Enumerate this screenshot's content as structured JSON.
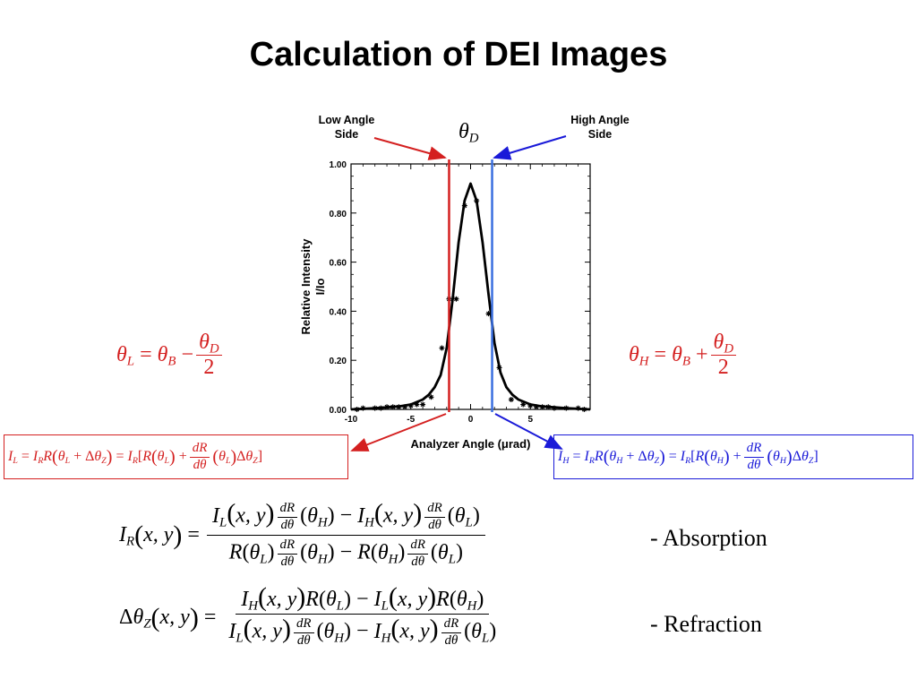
{
  "slide": {
    "title": "Calculation of DEI Images",
    "low_angle_side": "Low Angle\nSide",
    "high_angle_side": "High Angle\nSide",
    "theta_d": "θD",
    "absorption_label": "- Absorption",
    "refraction_label": "- Refraction",
    "eq_theta_l": "θL = θB − θD/2",
    "eq_theta_h": "θH = θB + θD/2",
    "eq_il": "IL = IR R(θL + ΔθZ) = IR[R(θL) + dR/dθ(θL)ΔθZ]",
    "eq_ih": "IH = IR R(θH + ΔθZ) = IR[R(θH) + dR/dθ(θH)ΔθZ]",
    "eq_ir": "IR(x,y) = [IL(x,y) dR/dθ(θH) − IH(x,y) dR/dθ(θL)] / [R(θL) dR/dθ(θH) − R(θH) dR/dθ(θL)]",
    "eq_dtheta": "ΔθZ(x,y) = [IH(x,y)R(θL) − IL(x,y)R(θH)] / [IL(x,y) dR/dθ(θH) − IH(x,y) dR/dθ(θL)]"
  },
  "colors": {
    "low": "#d42020",
    "high": "#3a6fe0",
    "arrow_high": "#1a1ad8"
  },
  "chart_data": {
    "type": "line",
    "title": "",
    "xlabel": "Analyzer Angle (μrad)",
    "ylabel": "Relative Intensity\nI/Io",
    "xlim": [
      -10,
      10
    ],
    "ylim": [
      0,
      1
    ],
    "xticks": [
      -10,
      -5,
      0,
      5
    ],
    "yticks": [
      "0.00",
      "0.20",
      "0.40",
      "0.60",
      "0.80",
      "1.00"
    ],
    "grid": false,
    "series": [
      {
        "kind": "curve",
        "x": [
          -10,
          -8,
          -6,
          -5,
          -4,
          -3.5,
          -3,
          -2.5,
          -2,
          -1.5,
          -1,
          -0.5,
          0,
          0.5,
          1,
          1.5,
          2,
          2.5,
          3,
          3.5,
          4,
          5,
          6,
          8,
          10
        ],
        "values": [
          0.0,
          0.005,
          0.012,
          0.02,
          0.04,
          0.06,
          0.09,
          0.14,
          0.25,
          0.45,
          0.68,
          0.85,
          0.92,
          0.85,
          0.68,
          0.47,
          0.27,
          0.15,
          0.09,
          0.06,
          0.04,
          0.02,
          0.012,
          0.005,
          0.0
        ]
      },
      {
        "kind": "points",
        "x": [
          -9.5,
          -9,
          -8,
          -7.5,
          -7,
          -6.5,
          -6,
          -5.5,
          -5,
          -4.5,
          -4,
          -3.3,
          -2.4,
          -1.8,
          -1.2,
          -0.5,
          0.5,
          1.5,
          2.4,
          3.4,
          4.4,
          5,
          5.5,
          6,
          6.5,
          7,
          8,
          9,
          9.5
        ],
        "values": [
          0.0,
          0.005,
          0.005,
          0.005,
          0.01,
          0.01,
          0.01,
          0.01,
          0.015,
          0.02,
          0.02,
          0.05,
          0.25,
          0.45,
          0.45,
          0.83,
          0.85,
          0.39,
          0.17,
          0.04,
          0.02,
          0.015,
          0.01,
          0.01,
          0.01,
          0.005,
          0.005,
          0.005,
          0.0
        ]
      }
    ],
    "vertical_lines": [
      {
        "name": "low-angle",
        "x": -1.8,
        "color": "#d42020"
      },
      {
        "name": "high-angle",
        "x": 1.8,
        "color": "#3a6fe0"
      }
    ]
  }
}
